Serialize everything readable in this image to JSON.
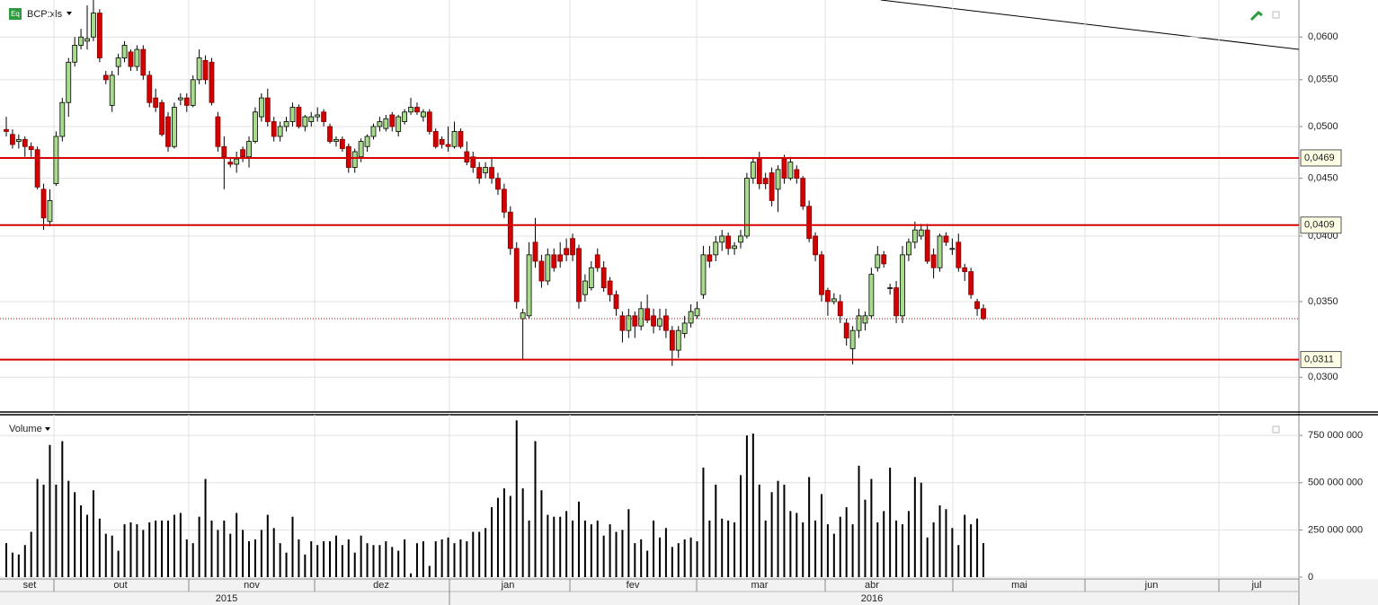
{
  "chart_data": {
    "type": "candlestick",
    "title": "BCP:xls",
    "volume_title": "Volume",
    "log_scale": true,
    "grid": true,
    "up_color": "#a8dc8c",
    "down_color": "#d40000",
    "volume_color": "#000000",
    "level_color": "#d40000",
    "ylim": [
      0.028,
      0.0647
    ],
    "yticks": [
      {
        "value": 0.03,
        "label": "0,0300"
      },
      {
        "value": 0.035,
        "label": "0,0350"
      },
      {
        "value": 0.04,
        "label": "0,0400"
      },
      {
        "value": 0.045,
        "label": "0,0450"
      },
      {
        "value": 0.05,
        "label": "0,0500"
      },
      {
        "value": 0.055,
        "label": "0,0550"
      },
      {
        "value": 0.06,
        "label": "0,0600"
      }
    ],
    "volume_ylim": [
      0,
      860000000
    ],
    "volume_yticks": [
      0,
      {
        "value": 250000000,
        "label": "250 000 000"
      },
      {
        "value": 500000000,
        "label": "500 000 000"
      },
      {
        "value": 750000000,
        "label": "750 000 000"
      }
    ],
    "levels": [
      {
        "value": 0.0469,
        "label": "0,0469"
      },
      {
        "value": 0.0409,
        "label": "0,0409"
      },
      {
        "value": 0.0311,
        "label": "0,0311"
      }
    ],
    "months": [
      "set",
      "out",
      "nov",
      "dez",
      "jan",
      "fev",
      "mar",
      "abr",
      "mai",
      "jun",
      "jul"
    ],
    "years": [
      "2015",
      "2016"
    ],
    "ohlc": [
      [
        0.0497,
        0.051,
        0.049,
        0.0495
      ],
      [
        0.0492,
        0.0497,
        0.0478,
        0.0482
      ],
      [
        0.0485,
        0.0492,
        0.0478,
        0.0487
      ],
      [
        0.0487,
        0.049,
        0.047,
        0.048
      ],
      [
        0.048,
        0.0484,
        0.047,
        0.0477
      ],
      [
        0.0477,
        0.048,
        0.044,
        0.0442
      ],
      [
        0.044,
        0.0445,
        0.0405,
        0.0415
      ],
      [
        0.0412,
        0.044,
        0.0408,
        0.043
      ],
      [
        0.0445,
        0.0495,
        0.0443,
        0.049
      ],
      [
        0.049,
        0.053,
        0.0485,
        0.0525
      ],
      [
        0.0525,
        0.0575,
        0.051,
        0.057
      ],
      [
        0.057,
        0.06,
        0.0565,
        0.059
      ],
      [
        0.059,
        0.061,
        0.0585,
        0.06
      ],
      [
        0.0595,
        0.064,
        0.0585,
        0.0598
      ],
      [
        0.06,
        0.065,
        0.0595,
        0.063
      ],
      [
        0.063,
        0.0635,
        0.057,
        0.0575
      ],
      [
        0.0555,
        0.056,
        0.0545,
        0.055
      ],
      [
        0.0522,
        0.056,
        0.0515,
        0.0555
      ],
      [
        0.0565,
        0.058,
        0.0555,
        0.0575
      ],
      [
        0.0575,
        0.0595,
        0.057,
        0.059
      ],
      [
        0.0582,
        0.0585,
        0.056,
        0.0565
      ],
      [
        0.0565,
        0.059,
        0.056,
        0.0585
      ],
      [
        0.0585,
        0.059,
        0.055,
        0.0555
      ],
      [
        0.0555,
        0.056,
        0.052,
        0.0525
      ],
      [
        0.053,
        0.054,
        0.0515,
        0.052
      ],
      [
        0.0525,
        0.0528,
        0.049,
        0.0492
      ],
      [
        0.051,
        0.0515,
        0.0475,
        0.048
      ],
      [
        0.048,
        0.0525,
        0.0478,
        0.052
      ],
      [
        0.0528,
        0.0535,
        0.0522,
        0.053
      ],
      [
        0.053,
        0.0535,
        0.0515,
        0.0522
      ],
      [
        0.0522,
        0.0555,
        0.052,
        0.055
      ],
      [
        0.055,
        0.0585,
        0.0545,
        0.0575
      ],
      [
        0.0572,
        0.0578,
        0.0545,
        0.055
      ],
      [
        0.057,
        0.0575,
        0.0522,
        0.0525
      ],
      [
        0.051,
        0.0515,
        0.0475,
        0.048
      ],
      [
        0.048,
        0.049,
        0.044,
        0.047
      ],
      [
        0.0465,
        0.047,
        0.046,
        0.0463
      ],
      [
        0.0463,
        0.0475,
        0.0455,
        0.0468
      ],
      [
        0.0477,
        0.048,
        0.0465,
        0.047
      ],
      [
        0.047,
        0.049,
        0.046,
        0.0485
      ],
      [
        0.0485,
        0.052,
        0.0483,
        0.0515
      ],
      [
        0.051,
        0.0535,
        0.0505,
        0.053
      ],
      [
        0.053,
        0.054,
        0.05,
        0.0505
      ],
      [
        0.0505,
        0.051,
        0.0485,
        0.049
      ],
      [
        0.049,
        0.0505,
        0.0485,
        0.05
      ],
      [
        0.05,
        0.051,
        0.0495,
        0.0505
      ],
      [
        0.0505,
        0.0525,
        0.05,
        0.052
      ],
      [
        0.052,
        0.0523,
        0.0498,
        0.05
      ],
      [
        0.05,
        0.0512,
        0.0495,
        0.051
      ],
      [
        0.0505,
        0.0515,
        0.05,
        0.051
      ],
      [
        0.051,
        0.052,
        0.0505,
        0.0512
      ],
      [
        0.0515,
        0.0518,
        0.05,
        0.0505
      ],
      [
        0.05,
        0.0503,
        0.0483,
        0.0485
      ],
      [
        0.0485,
        0.049,
        0.048,
        0.0487
      ],
      [
        0.0487,
        0.049,
        0.0475,
        0.0478
      ],
      [
        0.048,
        0.0483,
        0.0455,
        0.046
      ],
      [
        0.046,
        0.0478,
        0.0455,
        0.0475
      ],
      [
        0.047,
        0.0488,
        0.0465,
        0.0485
      ],
      [
        0.048,
        0.0492,
        0.0475,
        0.049
      ],
      [
        0.049,
        0.0503,
        0.0487,
        0.05
      ],
      [
        0.05,
        0.051,
        0.0495,
        0.0505
      ],
      [
        0.0498,
        0.0512,
        0.0495,
        0.0508
      ],
      [
        0.0512,
        0.0515,
        0.0495,
        0.05
      ],
      [
        0.0495,
        0.0512,
        0.049,
        0.051
      ],
      [
        0.0505,
        0.0518,
        0.0502,
        0.0515
      ],
      [
        0.0515,
        0.053,
        0.0512,
        0.052
      ],
      [
        0.052,
        0.0525,
        0.0512,
        0.0515
      ],
      [
        0.051,
        0.0518,
        0.0505,
        0.0515
      ],
      [
        0.0515,
        0.0518,
        0.0492,
        0.0495
      ],
      [
        0.0495,
        0.0498,
        0.0478,
        0.048
      ],
      [
        0.0487,
        0.049,
        0.0478,
        0.0482
      ],
      [
        0.0482,
        0.05,
        0.0475,
        0.048
      ],
      [
        0.048,
        0.0505,
        0.0478,
        0.0495
      ],
      [
        0.0495,
        0.0498,
        0.0478,
        0.048
      ],
      [
        0.0475,
        0.0485,
        0.0462,
        0.0465
      ],
      [
        0.047,
        0.0475,
        0.0455,
        0.046
      ],
      [
        0.046,
        0.0465,
        0.0445,
        0.045
      ],
      [
        0.0455,
        0.0465,
        0.045,
        0.046
      ],
      [
        0.046,
        0.047,
        0.0445,
        0.045
      ],
      [
        0.045,
        0.0455,
        0.0435,
        0.044
      ],
      [
        0.044,
        0.0445,
        0.0415,
        0.042
      ],
      [
        0.042,
        0.0425,
        0.0385,
        0.039
      ],
      [
        0.039,
        0.0395,
        0.0345,
        0.035
      ],
      [
        0.0338,
        0.0345,
        0.0311,
        0.0342
      ],
      [
        0.034,
        0.0395,
        0.0338,
        0.0385
      ],
      [
        0.0395,
        0.0415,
        0.0375,
        0.038
      ],
      [
        0.038,
        0.0385,
        0.036,
        0.0365
      ],
      [
        0.0365,
        0.039,
        0.0362,
        0.0385
      ],
      [
        0.0385,
        0.039,
        0.0372,
        0.0375
      ],
      [
        0.0385,
        0.0395,
        0.0375,
        0.038
      ],
      [
        0.039,
        0.0398,
        0.038,
        0.0385
      ],
      [
        0.0398,
        0.0402,
        0.038,
        0.0385
      ],
      [
        0.039,
        0.0393,
        0.0345,
        0.035
      ],
      [
        0.0355,
        0.037,
        0.035,
        0.0365
      ],
      [
        0.036,
        0.038,
        0.0358,
        0.0375
      ],
      [
        0.0385,
        0.039,
        0.0372,
        0.0375
      ],
      [
        0.0375,
        0.038,
        0.0357,
        0.036
      ],
      [
        0.0365,
        0.0368,
        0.035,
        0.0355
      ],
      [
        0.0355,
        0.0358,
        0.034,
        0.0345
      ],
      [
        0.034,
        0.0343,
        0.0322,
        0.033
      ],
      [
        0.033,
        0.0345,
        0.0325,
        0.034
      ],
      [
        0.034,
        0.0343,
        0.0325,
        0.0333
      ],
      [
        0.0333,
        0.035,
        0.033,
        0.0345
      ],
      [
        0.0345,
        0.0355,
        0.0335,
        0.0337
      ],
      [
        0.034,
        0.0345,
        0.0328,
        0.0333
      ],
      [
        0.0333,
        0.0345,
        0.033,
        0.0338
      ],
      [
        0.034,
        0.0345,
        0.0325,
        0.033
      ],
      [
        0.033,
        0.0333,
        0.0307,
        0.0317
      ],
      [
        0.0317,
        0.0333,
        0.0312,
        0.033
      ],
      [
        0.0328,
        0.034,
        0.0325,
        0.0335
      ],
      [
        0.0335,
        0.0348,
        0.0332,
        0.0343
      ],
      [
        0.034,
        0.035,
        0.0338,
        0.0345
      ],
      [
        0.0355,
        0.0392,
        0.0352,
        0.0385
      ],
      [
        0.0385,
        0.0392,
        0.0375,
        0.038
      ],
      [
        0.0385,
        0.04,
        0.038,
        0.0395
      ],
      [
        0.0395,
        0.0405,
        0.0388,
        0.04
      ],
      [
        0.04,
        0.0403,
        0.0385,
        0.039
      ],
      [
        0.039,
        0.0395,
        0.0385,
        0.0392
      ],
      [
        0.0395,
        0.0405,
        0.039,
        0.04
      ],
      [
        0.04,
        0.0455,
        0.0398,
        0.045
      ],
      [
        0.045,
        0.047,
        0.0445,
        0.0465
      ],
      [
        0.0468,
        0.0475,
        0.044,
        0.0445
      ],
      [
        0.045,
        0.0455,
        0.044,
        0.0445
      ],
      [
        0.0455,
        0.046,
        0.0425,
        0.043
      ],
      [
        0.044,
        0.0462,
        0.042,
        0.0458
      ],
      [
        0.0468,
        0.0472,
        0.0445,
        0.045
      ],
      [
        0.045,
        0.047,
        0.0448,
        0.0465
      ],
      [
        0.0458,
        0.0462,
        0.0445,
        0.045
      ],
      [
        0.045,
        0.0452,
        0.0422,
        0.0425
      ],
      [
        0.0425,
        0.043,
        0.0395,
        0.0398
      ],
      [
        0.04,
        0.0403,
        0.038,
        0.0385
      ],
      [
        0.0385,
        0.0388,
        0.035,
        0.0355
      ],
      [
        0.0358,
        0.036,
        0.034,
        0.035
      ],
      [
        0.035,
        0.0356,
        0.0348,
        0.0352
      ],
      [
        0.035,
        0.0355,
        0.0335,
        0.034
      ],
      [
        0.0335,
        0.0338,
        0.032,
        0.0325
      ],
      [
        0.0318,
        0.0333,
        0.0308,
        0.033
      ],
      [
        0.033,
        0.0345,
        0.0325,
        0.034
      ],
      [
        0.0335,
        0.0343,
        0.033,
        0.034
      ],
      [
        0.034,
        0.0375,
        0.0338,
        0.037
      ],
      [
        0.0375,
        0.0392,
        0.0372,
        0.0385
      ],
      [
        0.0385,
        0.0388,
        0.0375,
        0.0378
      ],
      [
        0.036,
        0.0363,
        0.0355,
        0.036
      ],
      [
        0.036,
        0.0365,
        0.0335,
        0.034
      ],
      [
        0.034,
        0.0392,
        0.0335,
        0.0385
      ],
      [
        0.0385,
        0.0398,
        0.038,
        0.0395
      ],
      [
        0.0395,
        0.0412,
        0.039,
        0.0405
      ],
      [
        0.04,
        0.041,
        0.0397,
        0.0405
      ],
      [
        0.0405,
        0.041,
        0.0378,
        0.038
      ],
      [
        0.0385,
        0.039,
        0.0367,
        0.0375
      ],
      [
        0.0375,
        0.0402,
        0.0372,
        0.04
      ],
      [
        0.04,
        0.0403,
        0.0392,
        0.0395
      ],
      [
        0.039,
        0.0398,
        0.0385,
        0.039
      ],
      [
        0.0395,
        0.0402,
        0.0372,
        0.0375
      ],
      [
        0.0375,
        0.0378,
        0.0365,
        0.0372
      ],
      [
        0.0372,
        0.0375,
        0.0352,
        0.0355
      ],
      [
        0.035,
        0.0352,
        0.034,
        0.0345
      ],
      [
        0.0345,
        0.0348,
        0.0337,
        0.0338
      ]
    ],
    "volume": [
      180000000,
      130000000,
      120000000,
      170000000,
      240000000,
      520000000,
      490000000,
      700000000,
      490000000,
      720000000,
      510000000,
      450000000,
      380000000,
      330000000,
      460000000,
      310000000,
      230000000,
      220000000,
      140000000,
      280000000,
      290000000,
      280000000,
      250000000,
      290000000,
      300000000,
      300000000,
      300000000,
      330000000,
      340000000,
      200000000,
      180000000,
      320000000,
      520000000,
      300000000,
      250000000,
      300000000,
      230000000,
      340000000,
      250000000,
      190000000,
      200000000,
      250000000,
      330000000,
      260000000,
      180000000,
      130000000,
      320000000,
      200000000,
      120000000,
      190000000,
      170000000,
      190000000,
      190000000,
      220000000,
      170000000,
      200000000,
      130000000,
      220000000,
      180000000,
      170000000,
      170000000,
      190000000,
      160000000,
      140000000,
      200000000,
      20000000,
      180000000,
      190000000,
      60000000,
      190000000,
      200000000,
      210000000,
      180000000,
      200000000,
      190000000,
      240000000,
      240000000,
      260000000,
      370000000,
      420000000,
      470000000,
      430000000,
      830000000,
      470000000,
      300000000,
      720000000,
      460000000,
      330000000,
      320000000,
      320000000,
      350000000,
      300000000,
      400000000,
      300000000,
      280000000,
      300000000,
      220000000,
      280000000,
      240000000,
      250000000,
      360000000,
      180000000,
      200000000,
      140000000,
      300000000,
      210000000,
      260000000,
      160000000,
      180000000,
      200000000,
      210000000,
      190000000,
      580000000,
      300000000,
      490000000,
      310000000,
      300000000,
      290000000,
      540000000,
      750000000,
      760000000,
      490000000,
      300000000,
      450000000,
      510000000,
      490000000,
      350000000,
      340000000,
      290000000,
      530000000,
      300000000,
      440000000,
      280000000,
      230000000,
      320000000,
      370000000,
      280000000,
      590000000,
      410000000,
      520000000,
      290000000,
      350000000,
      580000000,
      300000000,
      280000000,
      350000000,
      530000000,
      500000000,
      210000000,
      290000000,
      380000000,
      360000000,
      260000000,
      170000000,
      330000000,
      280000000,
      310000000,
      180000000
    ]
  }
}
